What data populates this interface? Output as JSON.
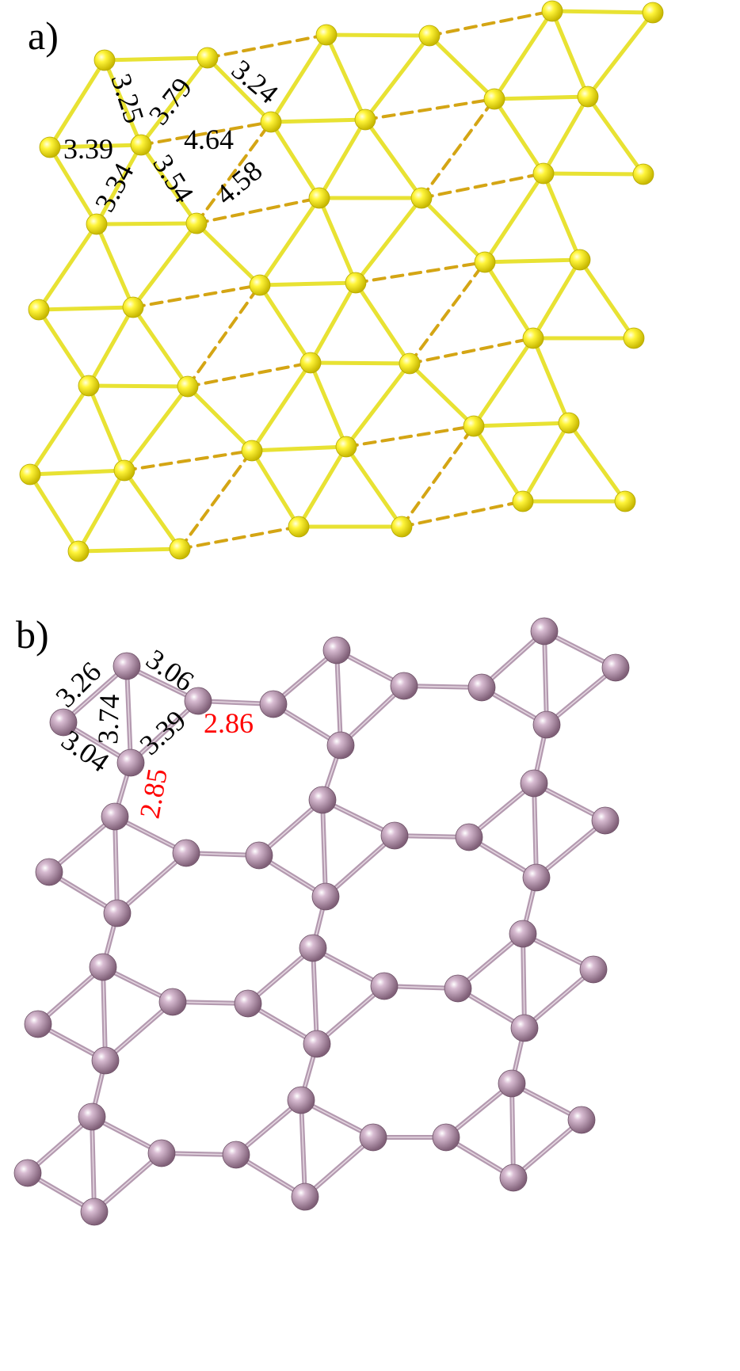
{
  "panels": [
    {
      "label": "a)",
      "name": "panel-a-yellow-lattice"
    },
    {
      "label": "b)",
      "name": "panel-b-purple-network"
    }
  ],
  "colors": {
    "yellow_atom": "#f2ee00",
    "yellow_bond": "#e8e233",
    "yellow_dashed": "#d4a514",
    "purple_atom": "#b088a8",
    "purple_bond": "#b49ab0",
    "label_black": "#000000",
    "label_red": "#ff0000"
  },
  "panel_a_distances": [
    "3.25",
    "3.79",
    "3.24",
    "3.39",
    "4.64",
    "3.34",
    "3.54",
    "4.58"
  ],
  "panel_b_distances": [
    "3.26",
    "3.06",
    "3.74",
    "3.39",
    "3.04",
    "2.86",
    "2.85"
  ],
  "panel_b_highlight": [
    "2.86",
    "2.85"
  ]
}
